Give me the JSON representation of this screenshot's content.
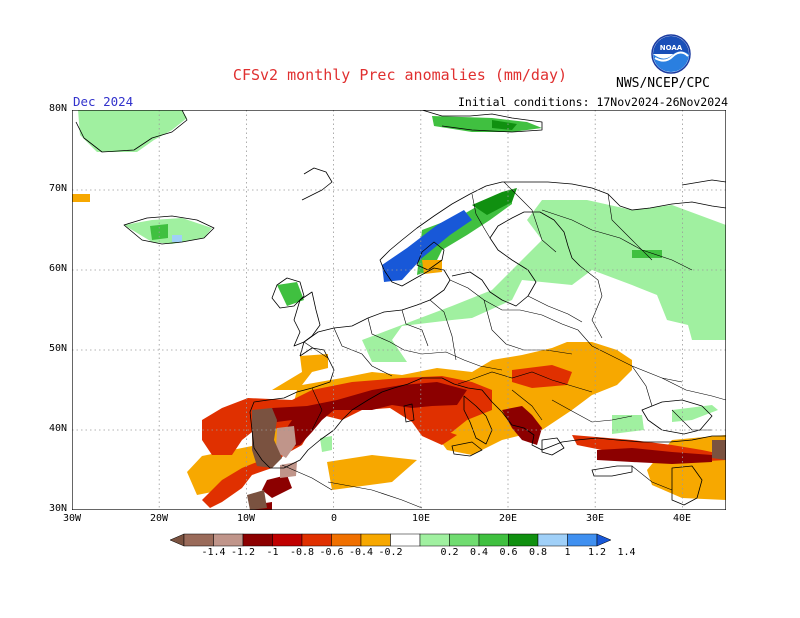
{
  "header": {
    "title": "CFSv2 monthly Prec anomalies (mm/day)",
    "valid_month": "Dec 2024",
    "initial_conditions": "Initial conditions: 17Nov2024-26Nov2024",
    "agency": "NWS/NCEP/CPC",
    "logo_text": "NOAA"
  },
  "map": {
    "lon_range": [
      -30,
      45
    ],
    "lat_range": [
      30,
      80
    ],
    "lat_labels": [
      "30N",
      "40N",
      "50N",
      "60N",
      "70N",
      "80N"
    ],
    "lon_labels": [
      "30W",
      "20W",
      "10W",
      "0",
      "10E",
      "20E",
      "30E",
      "40E"
    ]
  },
  "colorbar": {
    "labels": [
      "-1.4",
      "-1.2",
      "-1",
      "-0.8",
      "-0.6",
      "-0.4",
      "-0.2",
      "0.2",
      "0.4",
      "0.6",
      "0.8",
      "1",
      "1.2",
      "1.4"
    ],
    "colors": [
      "#7a5240",
      "#9a6b5a",
      "#c0958a",
      "#8c0000",
      "#c00000",
      "#e03000",
      "#f07000",
      "#f7a800",
      "#ffffff",
      "#a0f0a0",
      "#70dc70",
      "#40c040",
      "#109010",
      "#a0d0f8",
      "#4090f0",
      "#1858d8"
    ]
  },
  "anomaly_colors": {
    "dry_strong": "#8c0000",
    "dry_moderate": "#e03000",
    "dry_weak": "#f7a800",
    "dry_extreme": "#9a6b5a",
    "wet_weak": "#a0f0a0",
    "wet_moderate": "#40c040",
    "wet_strong": "#109010",
    "wet_very": "#1858d8"
  }
}
